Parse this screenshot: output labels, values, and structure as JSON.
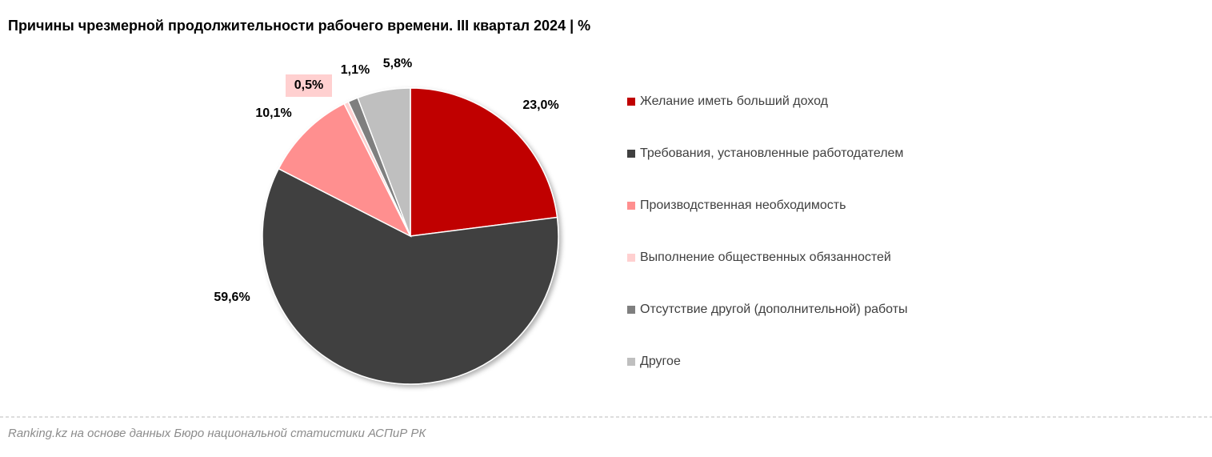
{
  "chart_data": {
    "type": "pie",
    "title": "Причины чрезмерной продолжительности рабочего времени. III квартал 2024 | %",
    "categories": [
      "Желание иметь больший доход",
      "Требования, установленные работодателем",
      "Производственная необходимость",
      "Выполнение общественных обязанностей",
      "Отсутствие другой (дополнительной) работы",
      "Другое"
    ],
    "values": [
      23.0,
      59.6,
      10.1,
      0.5,
      1.1,
      5.8
    ],
    "value_labels": [
      "23,0%",
      "59,6%",
      "10,1%",
      "0,5%",
      "1,1%",
      "5,8%"
    ],
    "colors": [
      "#c00000",
      "#404040",
      "#ff8f8f",
      "#ffd0d0",
      "#7f7f7f",
      "#bfbfbf"
    ],
    "legend": "right",
    "source": "Ranking.kz на основе данных Бюро национальной статистики АСПиР РК"
  }
}
